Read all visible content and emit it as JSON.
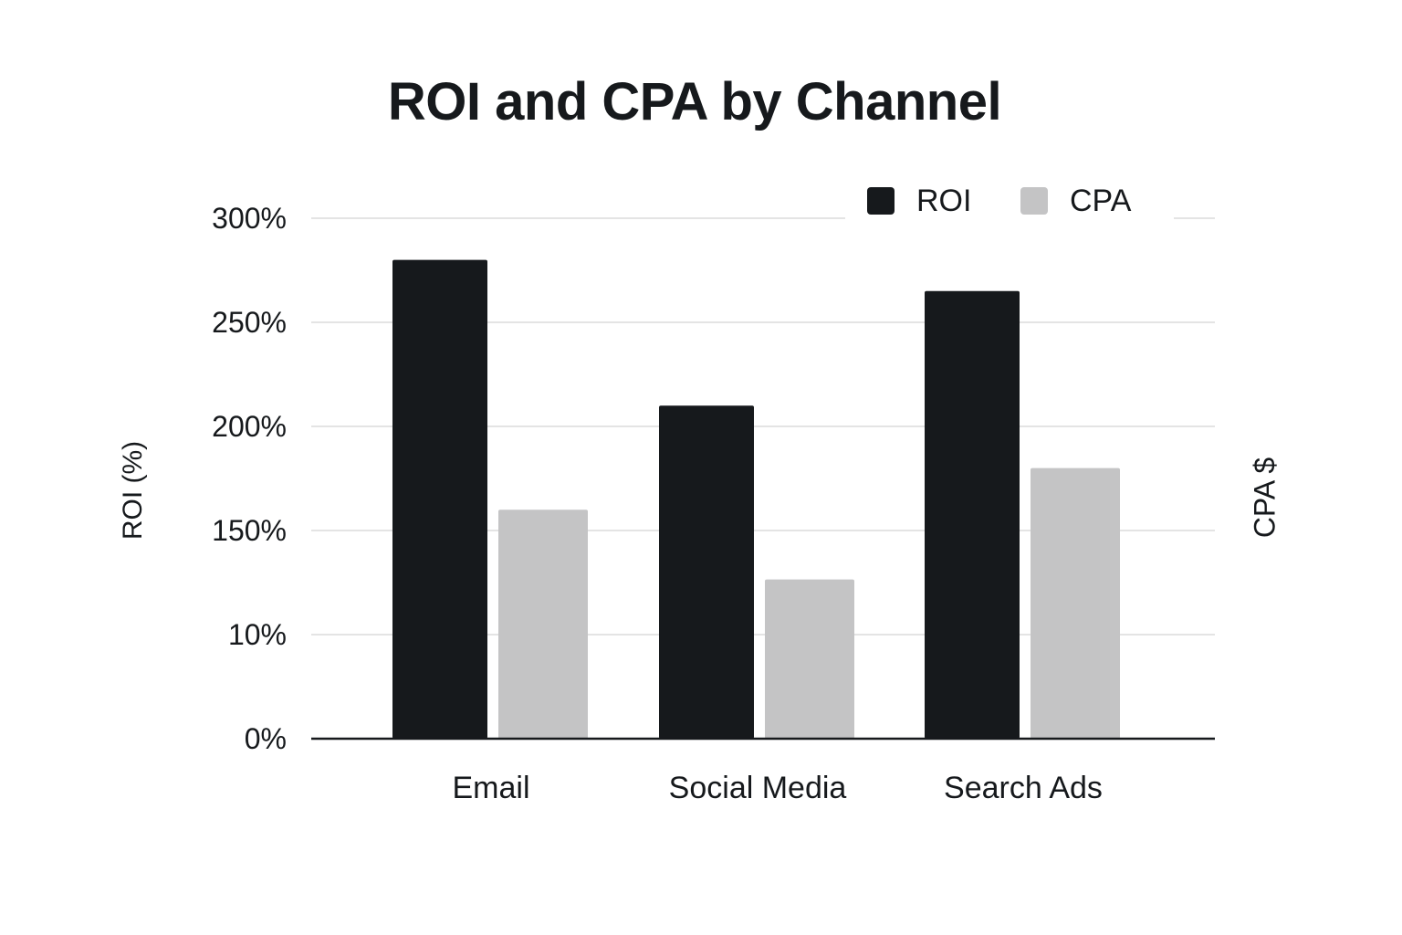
{
  "chart_data": {
    "type": "bar",
    "title": "ROI and CPA by Channel",
    "xlabel": "",
    "ylabel": "ROI (%)",
    "y2label": "CPA $",
    "categories": [
      "Email",
      "Social Media",
      "Search Ads"
    ],
    "yticks": [
      {
        "label": "0%",
        "level": 0
      },
      {
        "label": "10%",
        "level": 1
      },
      {
        "label": "150%",
        "level": 2
      },
      {
        "label": "200%",
        "level": 3
      },
      {
        "label": "250%",
        "level": 4
      },
      {
        "label": "300%",
        "level": 5
      }
    ],
    "ylim": [
      0,
      5
    ],
    "grid": true,
    "legend_position": "top-right",
    "series": [
      {
        "name": "ROI",
        "color": "#16191c",
        "values": [
          4.6,
          3.2,
          4.3
        ]
      },
      {
        "name": "CPA",
        "color": "#c4c4c5",
        "values": [
          2.2,
          1.53,
          2.6
        ]
      }
    ]
  }
}
